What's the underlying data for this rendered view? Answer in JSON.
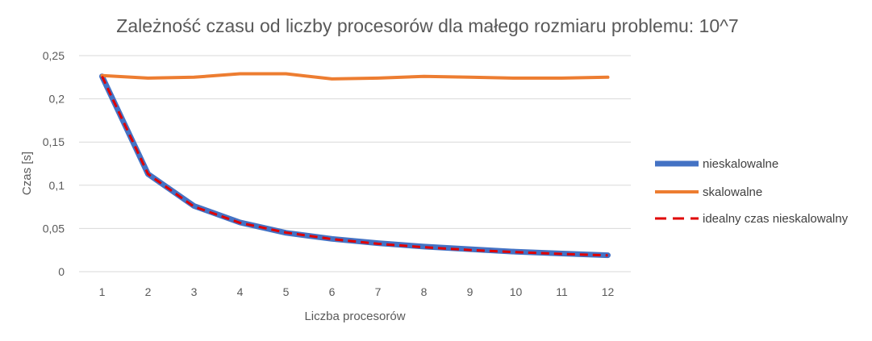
{
  "chart_data": {
    "type": "line",
    "title": "Zależność czasu od liczby procesorów dla małego rozmiaru problemu:  10^7",
    "xlabel": "Liczba procesorów",
    "ylabel": "Czas [s]",
    "categories": [
      "1",
      "2",
      "3",
      "4",
      "5",
      "6",
      "7",
      "8",
      "9",
      "10",
      "11",
      "12"
    ],
    "ylim": [
      0,
      0.25
    ],
    "yticks": [
      {
        "value": 0,
        "label": "0"
      },
      {
        "value": 0.05,
        "label": "0,05"
      },
      {
        "value": 0.1,
        "label": "0,1"
      },
      {
        "value": 0.15,
        "label": "0,15"
      },
      {
        "value": 0.2,
        "label": "0,2"
      },
      {
        "value": 0.25,
        "label": "0,25"
      }
    ],
    "grid": true,
    "legend_position": "right",
    "series": [
      {
        "name": "nieskalowalne",
        "color": "#4472c4",
        "style": "solid-thick",
        "values": [
          0.226,
          0.113,
          0.076,
          0.057,
          0.045,
          0.038,
          0.033,
          0.029,
          0.026,
          0.023,
          0.021,
          0.019
        ]
      },
      {
        "name": "skalowalne",
        "color": "#ed7d31",
        "style": "solid",
        "values": [
          0.227,
          0.224,
          0.225,
          0.229,
          0.229,
          0.223,
          0.224,
          0.226,
          0.225,
          0.224,
          0.224,
          0.225
        ]
      },
      {
        "name": "idealny czas nieskalowalny",
        "color": "#e00000",
        "style": "dashed",
        "values": [
          0.226,
          0.113,
          0.0753,
          0.0565,
          0.0452,
          0.0377,
          0.0323,
          0.0283,
          0.0251,
          0.0226,
          0.0205,
          0.0188
        ]
      }
    ]
  }
}
